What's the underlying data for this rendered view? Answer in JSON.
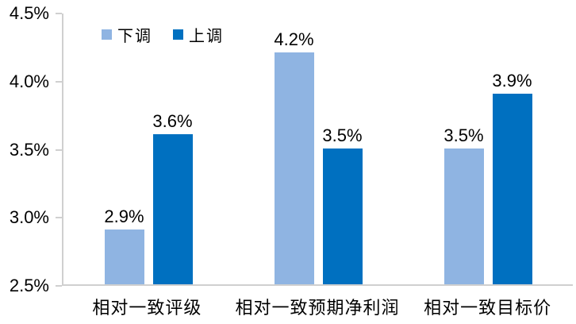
{
  "chart_data": {
    "type": "bar",
    "title": "",
    "xlabel": "",
    "ylabel": "",
    "categories": [
      "相对一致评级",
      "相对一致预期净利润",
      "相对一致目标价"
    ],
    "series": [
      {
        "key": "downgrade",
        "name": "下调",
        "color": "#8fb4e2",
        "values": [
          2.9,
          4.2,
          3.5
        ],
        "labels": [
          "2.9%",
          "4.2%",
          "3.5%"
        ]
      },
      {
        "key": "upgrade",
        "name": "上调",
        "color": "#0070c0",
        "values": [
          3.6,
          3.5,
          3.9
        ],
        "labels": [
          "3.6%",
          "3.5%",
          "3.9%"
        ]
      }
    ],
    "y_ticks": [
      {
        "value": 4.5,
        "label": "4.5%"
      },
      {
        "value": 4.0,
        "label": "4.0%"
      },
      {
        "value": 3.5,
        "label": "3.5%"
      },
      {
        "value": 3.0,
        "label": "3.0%"
      },
      {
        "value": 2.5,
        "label": "2.5%"
      }
    ],
    "ylim": [
      2.5,
      4.5
    ],
    "grid": false,
    "legend_position": "top-left-inside",
    "colors": {
      "axis": "#d0d0d0",
      "text": "#000000",
      "background": "#ffffff"
    }
  }
}
